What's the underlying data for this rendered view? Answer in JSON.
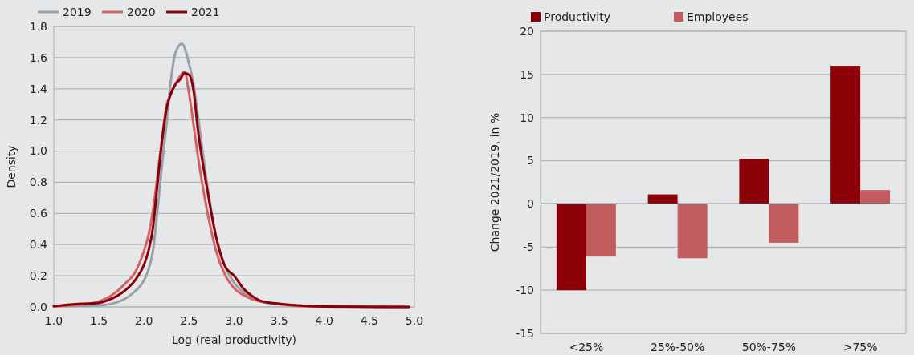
{
  "chart_data": [
    {
      "type": "line",
      "xlabel": "Log (real productivity)",
      "ylabel": "Density",
      "xlim": [
        1,
        5
      ],
      "ylim": [
        0,
        1.8
      ],
      "xticks": [
        {
          "value": 1,
          "label": "1.0"
        },
        {
          "value": 1.5,
          "label": "1.5"
        },
        {
          "value": 2,
          "label": "2.0"
        },
        {
          "value": 2.5,
          "label": "2.5"
        },
        {
          "value": 3,
          "label": "3.0"
        },
        {
          "value": 3.5,
          "label": "3.5"
        },
        {
          "value": 4,
          "label": "4.0"
        },
        {
          "value": 4.5,
          "label": "4.5"
        },
        {
          "value": 5,
          "label": "5.0"
        }
      ],
      "yticks": [
        {
          "value": 0,
          "label": "0.0"
        },
        {
          "value": 0.2,
          "label": "0.2"
        },
        {
          "value": 0.4,
          "label": "0.4"
        },
        {
          "value": 0.6,
          "label": "0.6"
        },
        {
          "value": 0.8,
          "label": "0.8"
        },
        {
          "value": 1,
          "label": "1.0"
        },
        {
          "value": 1.2,
          "label": "1.2"
        },
        {
          "value": 1.4,
          "label": "1.4"
        },
        {
          "value": 1.6,
          "label": "1.6"
        },
        {
          "value": 1.8,
          "label": "1.8"
        }
      ],
      "grid": "y",
      "legend": "top left",
      "marker": "none",
      "line_style": "solid",
      "series": [
        {
          "name": "2019",
          "color": "#9aa0a6",
          "x": [
            1.0,
            1.5,
            1.7,
            1.8,
            1.9,
            2.0,
            2.05,
            2.1,
            2.15,
            2.2,
            2.25,
            2.3,
            2.35,
            2.42,
            2.5,
            2.55,
            2.6,
            2.7,
            2.8,
            2.9,
            3.0,
            3.1,
            3.2,
            3.3,
            3.5,
            3.8,
            4.94
          ],
          "values": [
            0.005,
            0.01,
            0.03,
            0.055,
            0.1,
            0.17,
            0.24,
            0.36,
            0.62,
            0.91,
            1.17,
            1.46,
            1.63,
            1.69,
            1.56,
            1.43,
            1.22,
            0.79,
            0.45,
            0.26,
            0.155,
            0.095,
            0.06,
            0.035,
            0.017,
            0.005,
            0
          ]
        },
        {
          "name": "2020",
          "color": "#d06464",
          "x": [
            1.0,
            1.3,
            1.5,
            1.6,
            1.7,
            1.8,
            1.9,
            2.0,
            2.05,
            2.1,
            2.15,
            2.2,
            2.25,
            2.3,
            2.35,
            2.4,
            2.45,
            2.5,
            2.55,
            2.6,
            2.7,
            2.8,
            2.9,
            3.0,
            3.1,
            3.2,
            3.4,
            3.6,
            3.8,
            4.94
          ],
          "values": [
            0.005,
            0.015,
            0.035,
            0.06,
            0.1,
            0.155,
            0.22,
            0.36,
            0.46,
            0.62,
            0.84,
            1.08,
            1.29,
            1.37,
            1.43,
            1.48,
            1.51,
            1.37,
            1.17,
            0.96,
            0.62,
            0.36,
            0.205,
            0.12,
            0.077,
            0.05,
            0.026,
            0.012,
            0.005,
            0
          ]
        },
        {
          "name": "2021",
          "color": "#8b0008",
          "x": [
            1.0,
            1.3,
            1.5,
            1.6,
            1.7,
            1.8,
            1.9,
            2.0,
            2.05,
            2.1,
            2.15,
            2.2,
            2.25,
            2.3,
            2.35,
            2.4,
            2.45,
            2.5,
            2.55,
            2.6,
            2.7,
            2.8,
            2.9,
            3.0,
            3.1,
            3.2,
            3.3,
            3.5,
            3.7,
            4.0,
            4.94
          ],
          "values": [
            0.005,
            0.02,
            0.026,
            0.043,
            0.07,
            0.11,
            0.17,
            0.27,
            0.36,
            0.51,
            0.79,
            1.06,
            1.27,
            1.37,
            1.43,
            1.46,
            1.5,
            1.49,
            1.39,
            1.13,
            0.76,
            0.45,
            0.26,
            0.2,
            0.12,
            0.07,
            0.038,
            0.02,
            0.01,
            0.003,
            0
          ]
        }
      ]
    },
    {
      "type": "bar",
      "ylabel": "Change 2021/2019, in %",
      "categories": [
        "<25%",
        "25%-50%",
        "50%-75%",
        ">75%"
      ],
      "ylim": [
        -15,
        20
      ],
      "yticks": [
        -15,
        -10,
        -5,
        0,
        5,
        10,
        15,
        20
      ],
      "grid": "y",
      "legend": "top left",
      "series": [
        {
          "name": "Productivity",
          "color": "#8c0007",
          "values": [
            -10,
            1.1,
            5.2,
            16
          ]
        },
        {
          "name": "Employees",
          "color": "#c25b5b",
          "values": [
            -6.1,
            -6.3,
            -4.5,
            1.6
          ]
        }
      ]
    }
  ]
}
